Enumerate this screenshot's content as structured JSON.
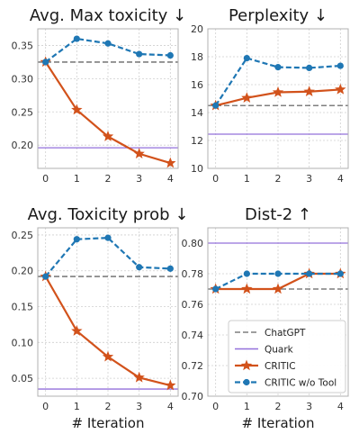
{
  "colors": {
    "chatgpt": "#7f7f7f",
    "quark": "#9370db",
    "critic": "#d2521b",
    "critic_wo_tool": "#1f77b4",
    "grid": "#cfcfcf",
    "frame": "#b0b0b0"
  },
  "legend": {
    "placement": "lower-right of Dist-2 panel",
    "entries": [
      "ChatGPT",
      "Quark",
      "CRITIC",
      "CRITIC w/o Tool"
    ]
  },
  "chart_data": [
    {
      "type": "line",
      "title": "Avg. Max toxicity ↓",
      "xlabel": "",
      "x": [
        0,
        1,
        2,
        3,
        4
      ],
      "xticks": [
        "0",
        "1",
        "2",
        "3",
        "4"
      ],
      "ylim": [
        0.165,
        0.375
      ],
      "yticks": [
        0.2,
        0.25,
        0.3,
        0.35
      ],
      "ytick_labels": [
        "0.20",
        "0.25",
        "0.30",
        "0.35"
      ],
      "grid": true,
      "baselines": [
        {
          "name": "ChatGPT",
          "value": 0.325
        },
        {
          "name": "Quark",
          "value": 0.196
        }
      ],
      "series": [
        {
          "name": "CRITIC",
          "values": [
            0.325,
            0.253,
            0.213,
            0.187,
            0.173
          ]
        },
        {
          "name": "CRITIC w/o Tool",
          "values": [
            0.325,
            0.36,
            0.353,
            0.337,
            0.335
          ]
        }
      ]
    },
    {
      "type": "line",
      "title": "Perplexity ↓",
      "xlabel": "",
      "x": [
        0,
        1,
        2,
        3,
        4
      ],
      "xticks": [
        "0",
        "1",
        "2",
        "3",
        "4"
      ],
      "ylim": [
        10,
        20
      ],
      "yticks": [
        10,
        12,
        14,
        16,
        18,
        20
      ],
      "ytick_labels": [
        "10",
        "12",
        "14",
        "16",
        "18",
        "20"
      ],
      "grid": true,
      "baselines": [
        {
          "name": "ChatGPT",
          "value": 14.5
        },
        {
          "name": "Quark",
          "value": 12.45
        }
      ],
      "series": [
        {
          "name": "CRITIC",
          "values": [
            14.5,
            15.05,
            15.45,
            15.5,
            15.65
          ]
        },
        {
          "name": "CRITIC w/o Tool",
          "values": [
            14.5,
            17.9,
            17.25,
            17.2,
            17.35
          ]
        }
      ]
    },
    {
      "type": "line",
      "title": "Avg. Toxicity prob ↓",
      "xlabel": "# Iteration",
      "x": [
        0,
        1,
        2,
        3,
        4
      ],
      "xticks": [
        "0",
        "1",
        "2",
        "3",
        "4"
      ],
      "ylim": [
        0.025,
        0.26
      ],
      "yticks": [
        0.05,
        0.1,
        0.15,
        0.2,
        0.25
      ],
      "ytick_labels": [
        "0.05",
        "0.10",
        "0.15",
        "0.20",
        "0.25"
      ],
      "grid": true,
      "baselines": [
        {
          "name": "ChatGPT",
          "value": 0.192
        },
        {
          "name": "Quark",
          "value": 0.035
        }
      ],
      "series": [
        {
          "name": "CRITIC",
          "values": [
            0.192,
            0.116,
            0.08,
            0.051,
            0.04
          ]
        },
        {
          "name": "CRITIC w/o Tool",
          "values": [
            0.192,
            0.244,
            0.246,
            0.205,
            0.203
          ]
        }
      ]
    },
    {
      "type": "line",
      "title": "Dist-2 ↑",
      "xlabel": "# Iteration",
      "x": [
        0,
        1,
        2,
        3,
        4
      ],
      "xticks": [
        "0",
        "1",
        "2",
        "3",
        "4"
      ],
      "ylim": [
        0.7,
        0.81
      ],
      "yticks": [
        0.7,
        0.72,
        0.74,
        0.76,
        0.78,
        0.8
      ],
      "ytick_labels": [
        "0.70",
        "0.72",
        "0.74",
        "0.76",
        "0.78",
        "0.80"
      ],
      "grid": true,
      "baselines": [
        {
          "name": "ChatGPT",
          "value": 0.77
        },
        {
          "name": "Quark",
          "value": 0.8
        }
      ],
      "series": [
        {
          "name": "CRITIC",
          "values": [
            0.77,
            0.77,
            0.77,
            0.78,
            0.78
          ]
        },
        {
          "name": "CRITIC w/o Tool",
          "values": [
            0.77,
            0.78,
            0.78,
            0.78,
            0.78
          ]
        }
      ]
    }
  ]
}
